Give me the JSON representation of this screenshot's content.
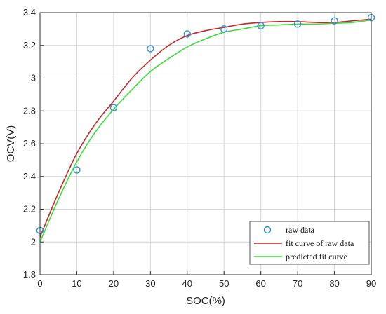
{
  "chart_data": {
    "type": "line",
    "xlabel": "SOC(%)",
    "ylabel": "OCV(V)",
    "xlim": [
      0,
      90
    ],
    "ylim": [
      1.8,
      3.4
    ],
    "xticks": [
      0,
      10,
      20,
      30,
      40,
      50,
      60,
      70,
      80,
      90
    ],
    "yticks": [
      1.8,
      2,
      2.2,
      2.4,
      2.6,
      2.8,
      3,
      3.2,
      3.4
    ],
    "ytick_labels": [
      "1.8",
      "2",
      "2.2",
      "2.4",
      "2.6",
      "2.8",
      "3",
      "3.2",
      "3.4"
    ],
    "grid": true,
    "legend_position": "bottom-right",
    "series": [
      {
        "name": "raw data",
        "kind": "scatter",
        "color": "#2a8fd4",
        "x": [
          0,
          10,
          20,
          30,
          40,
          50,
          60,
          70,
          80,
          90
        ],
        "y": [
          2.07,
          2.44,
          2.82,
          3.18,
          3.27,
          3.3,
          3.32,
          3.33,
          3.35,
          3.37
        ]
      },
      {
        "name": "fit curve of raw data",
        "kind": "line",
        "color": "#c0292b",
        "x": [
          0,
          5,
          10,
          15,
          20,
          25,
          30,
          35,
          40,
          45,
          50,
          55,
          60,
          65,
          70,
          75,
          80,
          85,
          90
        ],
        "y": [
          2.03,
          2.3,
          2.54,
          2.72,
          2.86,
          3.0,
          3.11,
          3.2,
          3.26,
          3.29,
          3.31,
          3.33,
          3.34,
          3.345,
          3.345,
          3.34,
          3.34,
          3.35,
          3.36
        ]
      },
      {
        "name": "predicted fit curve",
        "kind": "line",
        "color": "#3adc3a",
        "x": [
          0,
          5,
          10,
          15,
          20,
          25,
          30,
          35,
          40,
          45,
          50,
          55,
          60,
          65,
          70,
          75,
          80,
          85,
          90
        ],
        "y": [
          2.0,
          2.26,
          2.49,
          2.67,
          2.81,
          2.93,
          3.04,
          3.12,
          3.19,
          3.24,
          3.28,
          3.3,
          3.32,
          3.325,
          3.33,
          3.33,
          3.335,
          3.34,
          3.355
        ]
      }
    ]
  }
}
